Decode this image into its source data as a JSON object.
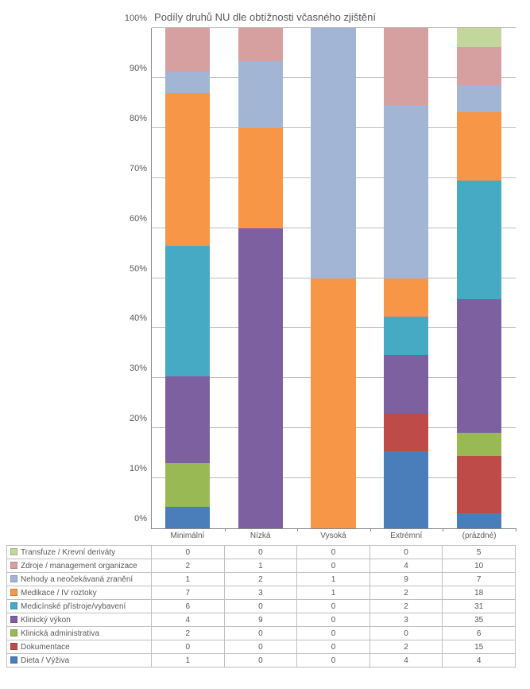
{
  "chart": {
    "type": "stacked-bar-100pct",
    "title": "Podíly druhů NU dle obtížnosti včasného zjištění",
    "title_fontsize": 13,
    "title_color": "#595959",
    "background_color": "#ffffff",
    "grid_color": "#bfbfbf",
    "axis_color": "#888888",
    "label_color": "#595959",
    "label_fontsize": 10,
    "ylim": [
      0,
      100
    ],
    "ytick_step": 10,
    "yticks": [
      "0%",
      "10%",
      "20%",
      "30%",
      "40%",
      "50%",
      "60%",
      "70%",
      "80%",
      "90%",
      "100%"
    ],
    "categories": [
      "Minimální",
      "Nízká",
      "Vysoká",
      "Extrémní",
      "(prázdné)"
    ],
    "series": [
      {
        "name": "Dieta / Výživa",
        "color": "#4a7ebb",
        "values": [
          1,
          0,
          0,
          4,
          4
        ]
      },
      {
        "name": "Dokumentace",
        "color": "#be4b48",
        "values": [
          0,
          0,
          0,
          2,
          15
        ]
      },
      {
        "name": "Klinická administrativa",
        "color": "#98b954",
        "values": [
          2,
          0,
          0,
          0,
          6
        ]
      },
      {
        "name": "Klinický výkon",
        "color": "#7d60a0",
        "values": [
          4,
          9,
          0,
          3,
          35
        ]
      },
      {
        "name": "Medicínské přístroje/vybavení",
        "color": "#46aac5",
        "values": [
          6,
          0,
          0,
          2,
          31
        ]
      },
      {
        "name": "Medikace / IV roztoky",
        "color": "#f79646",
        "values": [
          7,
          3,
          1,
          2,
          18
        ]
      },
      {
        "name": "Nehody a neočekávaná zranění",
        "color": "#a2b5d4",
        "values": [
          1,
          2,
          1,
          9,
          7
        ]
      },
      {
        "name": "Zdroje / management organizace",
        "color": "#d6a0a0",
        "values": [
          2,
          1,
          0,
          4,
          10
        ]
      },
      {
        "name": "Transfuze / Krevní deriváty",
        "color": "#c3d69b",
        "values": [
          0,
          0,
          0,
          0,
          5
        ]
      }
    ],
    "bar_width_pct": 62
  }
}
